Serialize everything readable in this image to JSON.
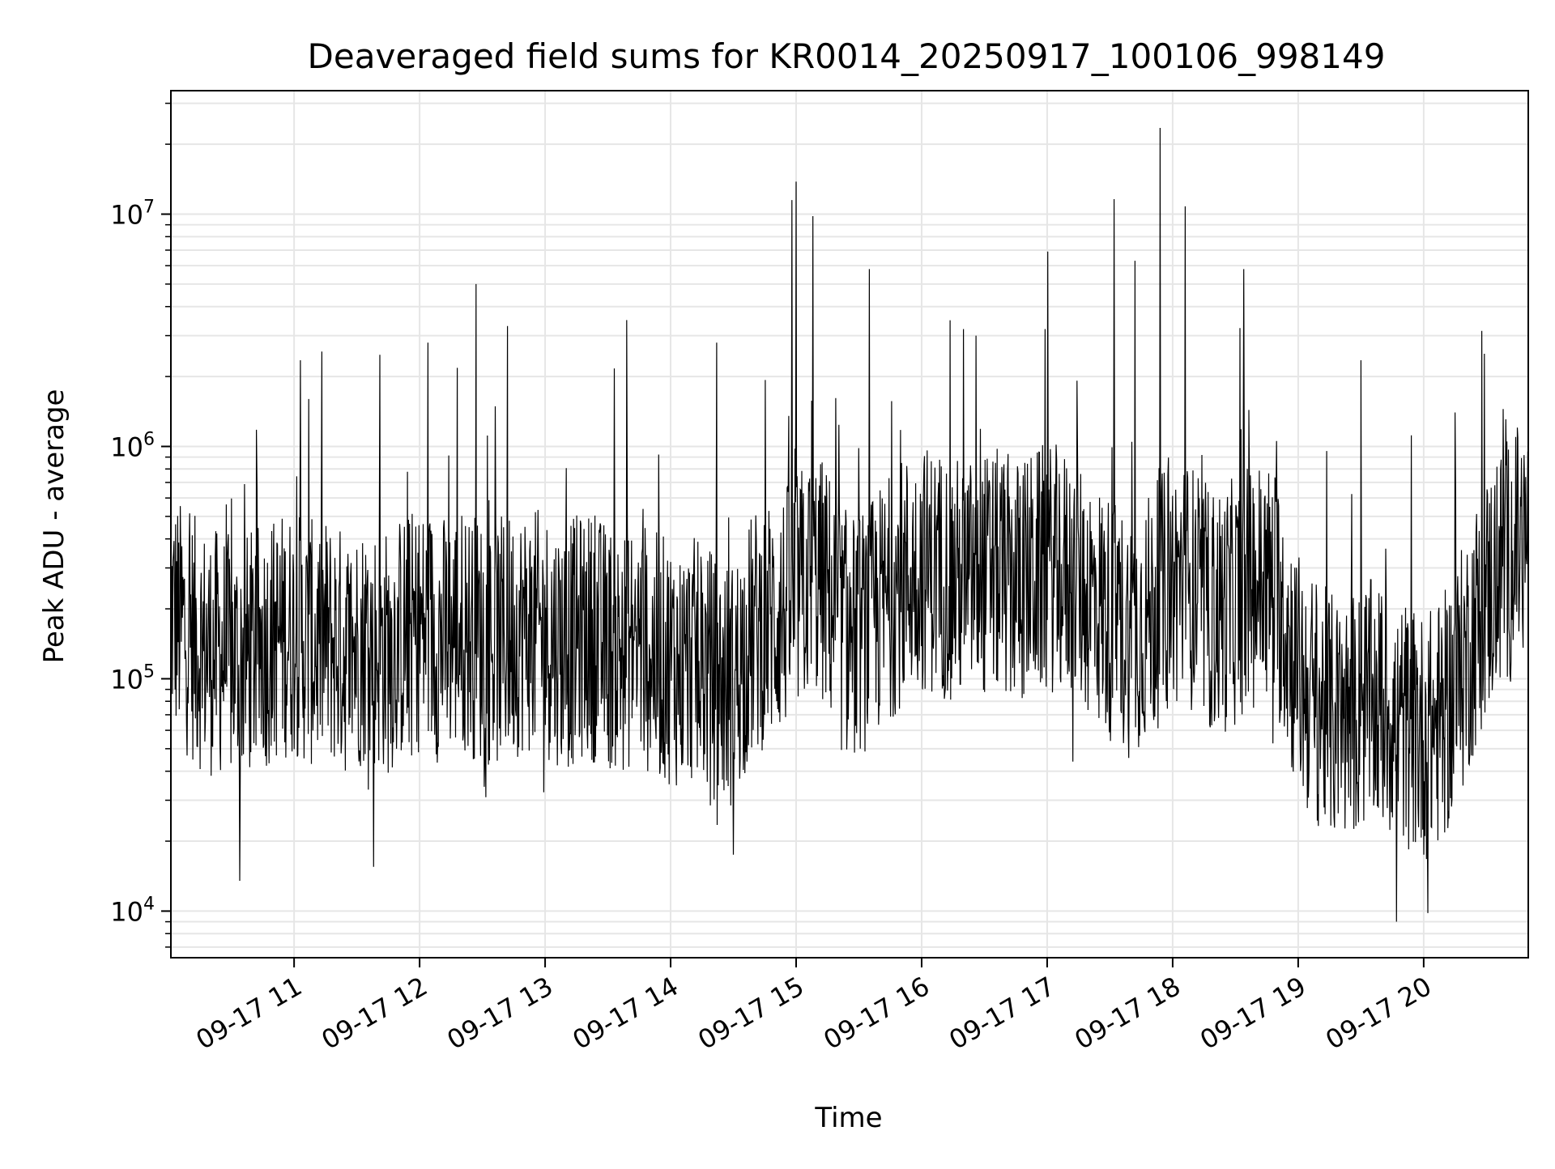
{
  "chart_data": {
    "type": "line",
    "title": "Deaveraged field sums for KR0014_20250917_100106_998149",
    "xlabel": "Time",
    "ylabel": "Peak ADU - average",
    "x_axis": {
      "type": "datetime",
      "range": [
        "2025-09-17T10:01:06",
        "2025-09-17T20:50:00"
      ],
      "ticks": [
        {
          "value": "2025-09-17T11:00",
          "label": "09-17 11"
        },
        {
          "value": "2025-09-17T12:00",
          "label": "09-17 12"
        },
        {
          "value": "2025-09-17T13:00",
          "label": "09-17 13"
        },
        {
          "value": "2025-09-17T14:00",
          "label": "09-17 14"
        },
        {
          "value": "2025-09-17T15:00",
          "label": "09-17 15"
        },
        {
          "value": "2025-09-17T16:00",
          "label": "09-17 16"
        },
        {
          "value": "2025-09-17T17:00",
          "label": "09-17 17"
        },
        {
          "value": "2025-09-17T18:00",
          "label": "09-17 18"
        },
        {
          "value": "2025-09-17T19:00",
          "label": "09-17 19"
        },
        {
          "value": "2025-09-17T20:00",
          "label": "09-17 20"
        }
      ]
    },
    "y_axis": {
      "scale": "log",
      "range": [
        6300,
        34000000
      ],
      "ticks": [
        {
          "value": 10000,
          "base": "10",
          "exp": "4"
        },
        {
          "value": 100000,
          "base": "10",
          "exp": "5"
        },
        {
          "value": 1000000,
          "base": "10",
          "exp": "6"
        },
        {
          "value": 10000000,
          "base": "10",
          "exp": "7"
        }
      ]
    },
    "grid": true,
    "legend": "none",
    "line_color": "#000000",
    "grid_color": "#e6e6e6",
    "series": [
      {
        "x": [
          "2025-09-17T10:01:06",
          "2025-09-17T10:05",
          "2025-09-17T10:10",
          "2025-09-17T10:15",
          "2025-09-17T10:20",
          "2025-09-17T10:25",
          "2025-09-17T10:30",
          "2025-09-17T10:35",
          "2025-09-17T10:40",
          "2025-09-17T10:45",
          "2025-09-17T10:50",
          "2025-09-17T10:55",
          "2025-09-17T11:00",
          "2025-09-17T11:05",
          "2025-09-17T11:10",
          "2025-09-17T11:15",
          "2025-09-17T11:20",
          "2025-09-17T11:25",
          "2025-09-17T11:30",
          "2025-09-17T11:35",
          "2025-09-17T11:40",
          "2025-09-17T11:45",
          "2025-09-17T11:50",
          "2025-09-17T11:55",
          "2025-09-17T12:00",
          "2025-09-17T12:05",
          "2025-09-17T12:10",
          "2025-09-17T12:15",
          "2025-09-17T12:20",
          "2025-09-17T12:25",
          "2025-09-17T12:30",
          "2025-09-17T12:35",
          "2025-09-17T12:40",
          "2025-09-17T12:45",
          "2025-09-17T12:50",
          "2025-09-17T12:55",
          "2025-09-17T13:00",
          "2025-09-17T13:05",
          "2025-09-17T13:10",
          "2025-09-17T13:15",
          "2025-09-17T13:20",
          "2025-09-17T13:25",
          "2025-09-17T13:30",
          "2025-09-17T13:35",
          "2025-09-17T13:40",
          "2025-09-17T13:45",
          "2025-09-17T13:50",
          "2025-09-17T13:55",
          "2025-09-17T14:00",
          "2025-09-17T14:05",
          "2025-09-17T14:10",
          "2025-09-17T14:15",
          "2025-09-17T14:20",
          "2025-09-17T14:25",
          "2025-09-17T14:30",
          "2025-09-17T14:35",
          "2025-09-17T14:40",
          "2025-09-17T14:45",
          "2025-09-17T14:50",
          "2025-09-17T14:55",
          "2025-09-17T15:00",
          "2025-09-17T15:05",
          "2025-09-17T15:10",
          "2025-09-17T15:15",
          "2025-09-17T15:20",
          "2025-09-17T15:25",
          "2025-09-17T15:30",
          "2025-09-17T15:35",
          "2025-09-17T15:40",
          "2025-09-17T15:45",
          "2025-09-17T15:50",
          "2025-09-17T15:55",
          "2025-09-17T16:00",
          "2025-09-17T16:05",
          "2025-09-17T16:10",
          "2025-09-17T16:15",
          "2025-09-17T16:20",
          "2025-09-17T16:25",
          "2025-09-17T16:30",
          "2025-09-17T16:35",
          "2025-09-17T16:40",
          "2025-09-17T16:45",
          "2025-09-17T16:50",
          "2025-09-17T16:55",
          "2025-09-17T17:00",
          "2025-09-17T17:05",
          "2025-09-17T17:10",
          "2025-09-17T17:15",
          "2025-09-17T17:20",
          "2025-09-17T17:25",
          "2025-09-17T17:30",
          "2025-09-17T17:35",
          "2025-09-17T17:40",
          "2025-09-17T17:45",
          "2025-09-17T17:50",
          "2025-09-17T17:55",
          "2025-09-17T18:00",
          "2025-09-17T18:05",
          "2025-09-17T18:10",
          "2025-09-17T18:15",
          "2025-09-17T18:20",
          "2025-09-17T18:25",
          "2025-09-17T18:30",
          "2025-09-17T18:35",
          "2025-09-17T18:40",
          "2025-09-17T18:45",
          "2025-09-17T18:50",
          "2025-09-17T18:55",
          "2025-09-17T19:00",
          "2025-09-17T19:05",
          "2025-09-17T19:10",
          "2025-09-17T19:15",
          "2025-09-17T19:20",
          "2025-09-17T19:25",
          "2025-09-17T19:30",
          "2025-09-17T19:35",
          "2025-09-17T19:40",
          "2025-09-17T19:45",
          "2025-09-17T19:50",
          "2025-09-17T19:55",
          "2025-09-17T20:00",
          "2025-09-17T20:05",
          "2025-09-17T20:10",
          "2025-09-17T20:15",
          "2025-09-17T20:20",
          "2025-09-17T20:25",
          "2025-09-17T20:30",
          "2025-09-17T20:35",
          "2025-09-17T20:40",
          "2025-09-17T20:45",
          "2025-09-17T20:50"
        ],
        "y_median": [
          230000,
          200000,
          180000,
          160000,
          150000,
          150000,
          140000,
          140000,
          150000,
          160000,
          170000,
          180000,
          180000,
          170000,
          160000,
          170000,
          160000,
          150000,
          160000,
          170000,
          160000,
          150000,
          170000,
          180000,
          190000,
          180000,
          170000,
          180000,
          190000,
          180000,
          170000,
          160000,
          170000,
          180000,
          190000,
          180000,
          180000,
          170000,
          160000,
          170000,
          180000,
          170000,
          160000,
          150000,
          160000,
          170000,
          150000,
          140000,
          140000,
          130000,
          140000,
          130000,
          120000,
          110000,
          110000,
          150000,
          180000,
          200000,
          210000,
          230000,
          260000,
          300000,
          320000,
          280000,
          200000,
          170000,
          180000,
          200000,
          230000,
          260000,
          300000,
          330000,
          350000,
          340000,
          330000,
          310000,
          300000,
          310000,
          320000,
          330000,
          320000,
          300000,
          310000,
          330000,
          350000,
          340000,
          320000,
          300000,
          270000,
          240000,
          210000,
          190000,
          180000,
          200000,
          220000,
          260000,
          300000,
          310000,
          280000,
          240000,
          220000,
          230000,
          250000,
          280000,
          300000,
          300000,
          270000,
          180000,
          120000,
          100000,
          90000,
          80000,
          75000,
          80000,
          85000,
          90000,
          85000,
          80000,
          75000,
          70000,
          65000,
          70000,
          80000,
          100000,
          140000,
          200000,
          260000,
          320000,
          370000,
          420000,
          450000
        ],
        "spikes": [
          {
            "x": "2025-09-17T10:34",
            "y": 1050000
          },
          {
            "x": "2025-09-17T10:34",
            "y": 13500,
            "direction": "down"
          },
          {
            "x": "2025-09-17T10:42",
            "y": 1180000
          },
          {
            "x": "2025-09-17T11:03",
            "y": 2350000
          },
          {
            "x": "2025-09-17T11:07",
            "y": 1600000
          },
          {
            "x": "2025-09-17T11:41",
            "y": 2480000
          },
          {
            "x": "2025-09-17T11:38",
            "y": 15500,
            "direction": "down"
          },
          {
            "x": "2025-09-17T12:04",
            "y": 2800000
          },
          {
            "x": "2025-09-17T12:18",
            "y": 2180000
          },
          {
            "x": "2025-09-17T12:27",
            "y": 5000000
          },
          {
            "x": "2025-09-17T12:42",
            "y": 3300000
          },
          {
            "x": "2025-09-17T13:39",
            "y": 3500000
          },
          {
            "x": "2025-09-17T14:22",
            "y": 2800000
          },
          {
            "x": "2025-09-17T14:30",
            "y": 17500,
            "direction": "down"
          },
          {
            "x": "2025-09-17T14:58",
            "y": 11500000
          },
          {
            "x": "2025-09-17T15:00",
            "y": 13800000
          },
          {
            "x": "2025-09-17T15:08",
            "y": 9800000
          },
          {
            "x": "2025-09-17T15:35",
            "y": 5800000
          },
          {
            "x": "2025-09-17T16:20",
            "y": 3200000
          },
          {
            "x": "2025-09-17T16:26",
            "y": 3000000
          },
          {
            "x": "2025-09-17T16:59",
            "y": 3200000
          },
          {
            "x": "2025-09-17T17:32",
            "y": 11600000
          },
          {
            "x": "2025-09-17T17:42",
            "y": 6300000
          },
          {
            "x": "2025-09-17T17:54",
            "y": 23500000
          },
          {
            "x": "2025-09-17T18:06",
            "y": 10800000
          },
          {
            "x": "2025-09-17T18:34",
            "y": 5800000
          },
          {
            "x": "2025-09-17T19:30",
            "y": 2350000
          },
          {
            "x": "2025-09-17T19:47",
            "y": 9000,
            "direction": "down"
          },
          {
            "x": "2025-09-17T20:02",
            "y": 9800,
            "direction": "down"
          },
          {
            "x": "2025-09-17T20:15",
            "y": 1400000
          },
          {
            "x": "2025-09-17T20:38",
            "y": 1450000
          }
        ],
        "noise_range_factor": [
          0.25,
          3.0
        ]
      }
    ]
  }
}
